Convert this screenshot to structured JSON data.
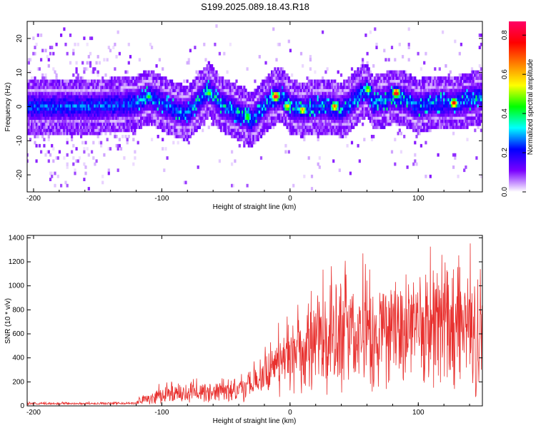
{
  "title": "S199.2025.089.18.43.R18",
  "chart_data": [
    {
      "type": "heatmap",
      "xlabel": "Height of straight line (km)",
      "ylabel": "Frequency (Hz)",
      "xlim": [
        -205,
        150
      ],
      "ylim": [
        -25,
        25
      ],
      "x_ticks": [
        -200,
        -100,
        0,
        100
      ],
      "y_ticks": [
        -20,
        -10,
        0,
        10,
        20
      ],
      "colorbar": {
        "label": "Normalized spectral amplitude",
        "range": [
          0,
          0.87
        ],
        "ticks": [
          0.0,
          0.2,
          0.4,
          0.6,
          0.8
        ],
        "colormap": [
          "#ffffff",
          "#7a00ff",
          "#0000ff",
          "#00ffff",
          "#00ff00",
          "#ffff00",
          "#ff8000",
          "#ff0000",
          "#ff0066"
        ]
      },
      "ridge": {
        "description_free": true,
        "points": [
          [
            -205,
            0
          ],
          [
            -180,
            0
          ],
          [
            -150,
            0
          ],
          [
            -120,
            1
          ],
          [
            -110,
            3
          ],
          [
            -100,
            1
          ],
          [
            -90,
            -1
          ],
          [
            -80,
            -2
          ],
          [
            -70,
            2
          ],
          [
            -63,
            5
          ],
          [
            -55,
            1
          ],
          [
            -45,
            -1
          ],
          [
            -35,
            -3
          ],
          [
            -30,
            -4
          ],
          [
            -25,
            -2
          ],
          [
            -20,
            0
          ],
          [
            -15,
            2
          ],
          [
            -10,
            3
          ],
          [
            -5,
            3
          ],
          [
            0,
            0
          ],
          [
            10,
            -1
          ],
          [
            20,
            0
          ],
          [
            30,
            0
          ],
          [
            40,
            -1
          ],
          [
            45,
            0
          ],
          [
            55,
            4
          ],
          [
            60,
            5
          ],
          [
            65,
            1
          ],
          [
            75,
            2
          ],
          [
            80,
            3
          ],
          [
            90,
            2
          ],
          [
            100,
            0
          ],
          [
            110,
            1
          ],
          [
            120,
            1
          ],
          [
            130,
            1
          ],
          [
            140,
            2
          ],
          [
            150,
            3
          ]
        ]
      },
      "peaks": [
        {
          "x": -11,
          "y": 3,
          "amp": 0.87
        },
        {
          "x": 83,
          "y": 4,
          "amp": 0.85
        },
        {
          "x": 128,
          "y": 1,
          "amp": 0.8
        },
        {
          "x": 35,
          "y": 0,
          "amp": 0.7
        },
        {
          "x": 10,
          "y": -1,
          "amp": 0.65
        },
        {
          "x": 61,
          "y": 5,
          "amp": 0.55
        },
        {
          "x": -63,
          "y": 4,
          "amp": 0.5
        },
        {
          "x": -33,
          "y": -3,
          "amp": 0.5
        },
        {
          "x": -110,
          "y": 3,
          "amp": 0.45
        },
        {
          "x": -2,
          "y": 0,
          "amp": 0.6
        }
      ]
    },
    {
      "type": "line",
      "xlabel": "Height of straight line (km)",
      "ylabel": "SNR (10 * v/v)",
      "xlim": [
        -205,
        150
      ],
      "ylim": [
        0,
        1420
      ],
      "x_ticks": [
        -200,
        -100,
        0,
        100
      ],
      "y_ticks": [
        0,
        200,
        400,
        600,
        800,
        1000,
        1200,
        1400
      ],
      "color": "#e8302e",
      "envelope": {
        "x": [
          -205,
          -180,
          -150,
          -120,
          -115,
          -100,
          -80,
          -60,
          -40,
          -25,
          -20,
          -10,
          0,
          10,
          20,
          30,
          50,
          70,
          90,
          110,
          130,
          150
        ],
        "mean": [
          20,
          20,
          20,
          22,
          55,
          90,
          100,
          120,
          140,
          200,
          260,
          320,
          380,
          430,
          500,
          540,
          600,
          620,
          600,
          600,
          620,
          600
        ],
        "spread": [
          10,
          10,
          10,
          10,
          45,
          70,
          80,
          90,
          110,
          160,
          220,
          260,
          300,
          350,
          420,
          460,
          520,
          550,
          520,
          520,
          560,
          560
        ]
      }
    }
  ]
}
